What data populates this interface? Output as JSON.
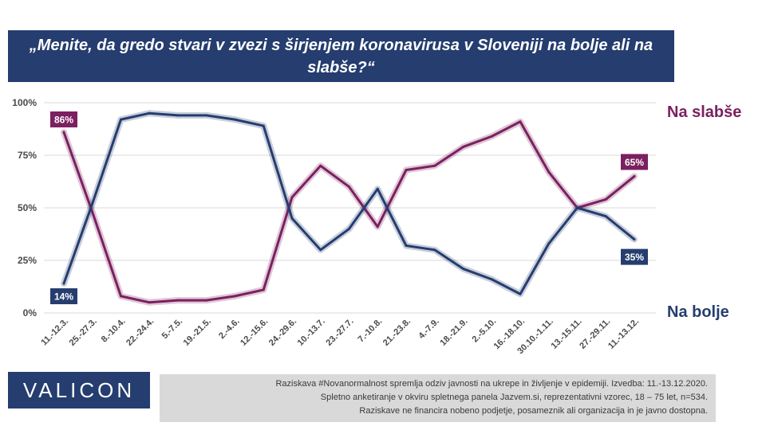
{
  "title": "„Menite, da gredo stvari v zvezi s širjenjem koronavirusa v Sloveniji na bolje ali na slabše?“",
  "logo_text": "VALICON",
  "footnote": [
    "Raziskava #Novanormalnost spremlja odziv javnosti na ukrepe in življenje v epidemiji. Izvedba: 11.-13.12.2020.",
    "Spletno anketiranje v okviru spletnega panela Jazvem.si, reprezentativni vzorec, 18 – 75 let, n=534.",
    "Raziskave ne financira nobeno podjetje, posameznik ali organizacija in je javno dostopna."
  ],
  "chart_data": {
    "type": "line",
    "categories": [
      "11.-12.3.",
      "25.-27.3.",
      "8.-10.4.",
      "22.-24.4.",
      "5.-7.5.",
      "19.-21.5.",
      "2.-4.6.",
      "12.-15.6.",
      "24.-29.6.",
      "10.-13.7.",
      "23.-27.7.",
      "7.-10.8.",
      "21.-23.8.",
      "4.-7.9.",
      "18.-21.9.",
      "2.-5.10.",
      "16.-18.10.",
      "30.10.-1.11.",
      "13.-15.11.",
      "27.-29.11.",
      "11.-13.12."
    ],
    "series": [
      {
        "name": "Na slabše",
        "color": "#7b2060",
        "values": [
          86,
          48,
          8,
          5,
          6,
          6,
          8,
          11,
          55,
          70,
          60,
          41,
          68,
          70,
          79,
          84,
          91,
          67,
          50,
          54,
          65
        ]
      },
      {
        "name": "Na bolje",
        "color": "#253d6f",
        "values": [
          14,
          52,
          92,
          95,
          94,
          94,
          92,
          89,
          45,
          30,
          40,
          59,
          32,
          30,
          21,
          16,
          9,
          33,
          50,
          46,
          35
        ]
      }
    ],
    "data_labels": [
      {
        "series": "Na slabše",
        "index": 0,
        "text": "86%"
      },
      {
        "series": "Na slabše",
        "index": 20,
        "text": "65%"
      },
      {
        "series": "Na bolje",
        "index": 0,
        "text": "14%"
      },
      {
        "series": "Na bolje",
        "index": 20,
        "text": "35%"
      }
    ],
    "y_ticks": [
      0,
      25,
      50,
      75,
      100
    ],
    "y_tick_labels": [
      "0%",
      "25%",
      "50%",
      "75%",
      "100%"
    ],
    "ylim": [
      0,
      100
    ],
    "grid": true,
    "legend_placement": "right, labels beside line ends"
  }
}
